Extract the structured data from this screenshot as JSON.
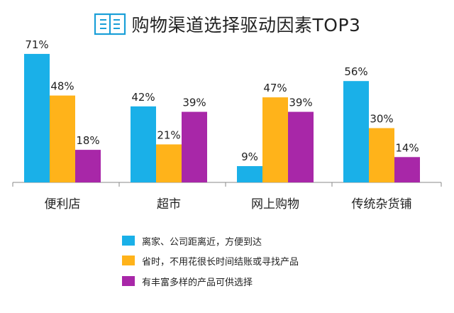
{
  "title": "购物渠道选择驱动因素TOP3",
  "colors": {
    "series_1": "#1ab0e8",
    "series_2": "#ffb31a",
    "series_3": "#a827a8",
    "axis": "#888888",
    "text": "#222222",
    "icon": "#1a9fd8"
  },
  "icon_name": "book-icon",
  "chart_data": {
    "type": "bar",
    "title": "购物渠道选择驱动因素TOP3",
    "categories": [
      "便利店",
      "超市",
      "网上购物",
      "传统杂货铺"
    ],
    "series": [
      {
        "name": "离家、公司距离近，方便到达",
        "values": [
          71,
          42,
          9,
          56
        ],
        "labels": [
          "71%",
          "42%",
          "9%",
          "56%"
        ]
      },
      {
        "name": "省时，不用花很长时间结账或寻找产品",
        "values": [
          48,
          21,
          47,
          30
        ],
        "labels": [
          "48%",
          "21%",
          "47%",
          "30%"
        ]
      },
      {
        "name": "有丰富多样的产品可供选择",
        "values": [
          18,
          39,
          39,
          14
        ],
        "labels": [
          "18%",
          "39%",
          "39%",
          "14%"
        ]
      }
    ],
    "ylim": [
      0,
      80
    ],
    "xlabel": "",
    "ylabel": "",
    "grid": false,
    "legend_position": "bottom"
  }
}
